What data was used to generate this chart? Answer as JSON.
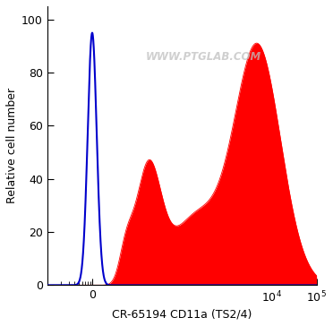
{
  "title": "",
  "xlabel": "CR-65194 CD11a (TS2/4)",
  "ylabel": "Relative cell number",
  "watermark": "WWW.PTGLAB.COM",
  "ylim": [
    0,
    105
  ],
  "yticks": [
    0,
    20,
    40,
    60,
    80,
    100
  ],
  "blue_color": "#0000cc",
  "red_color": "#ff0000",
  "bg_color": "#ffffff",
  "figsize": [
    3.72,
    3.64
  ],
  "dpi": 100
}
